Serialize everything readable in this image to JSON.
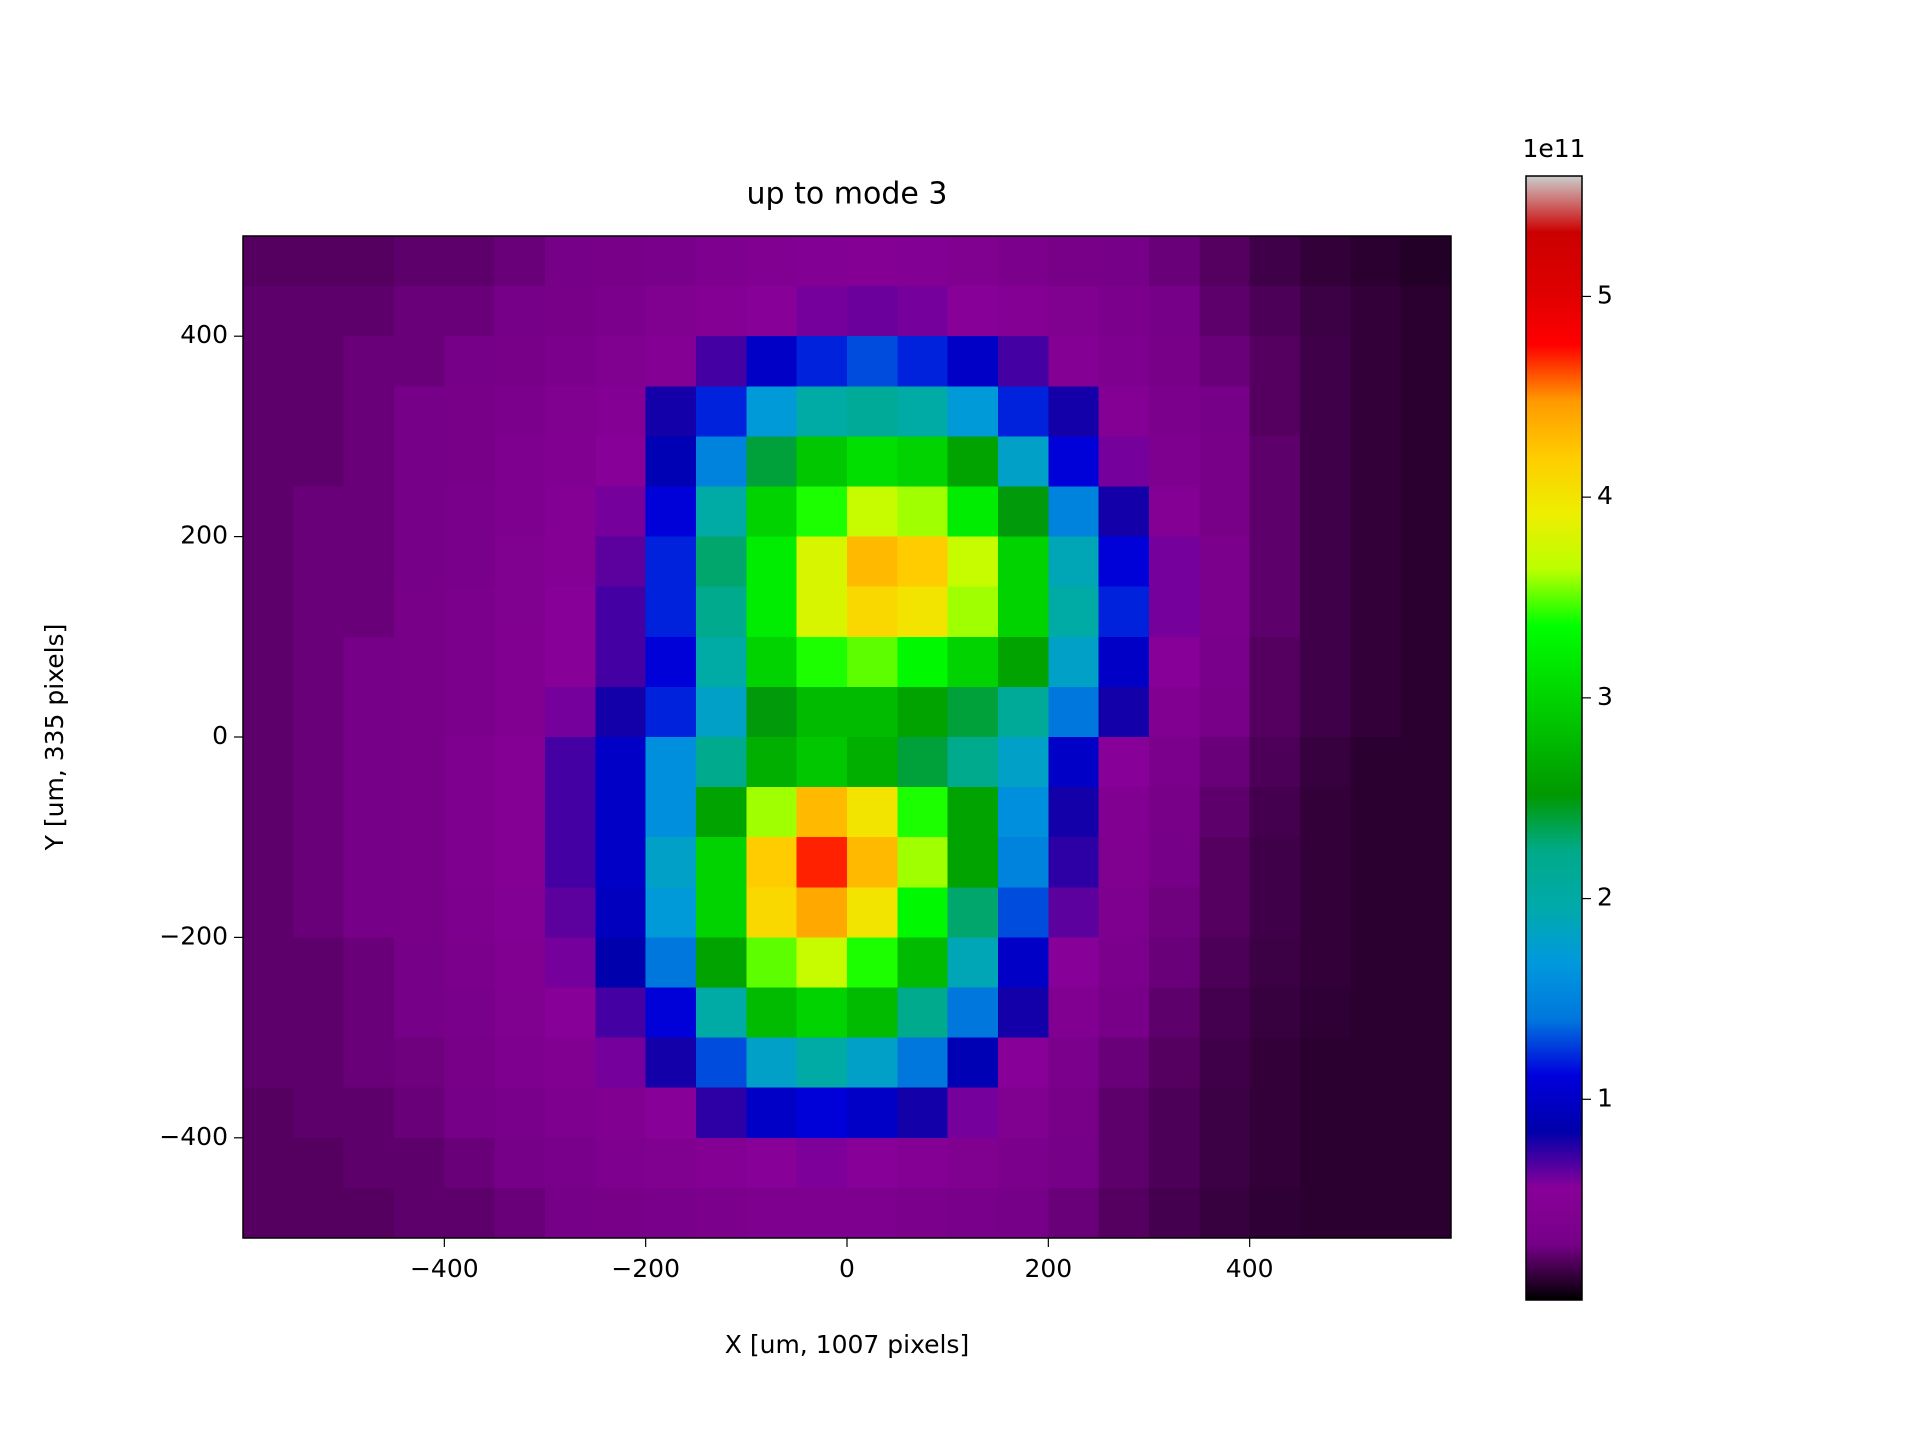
{
  "chart_data": {
    "type": "heatmap",
    "title": "up to mode 3",
    "xlabel": "X [um, 1007 pixels]",
    "ylabel": "Y [um, 335 pixels]",
    "xlim": [
      -600,
      600
    ],
    "ylim": [
      -500,
      500
    ],
    "xticks": [
      {
        "value": -400,
        "label": "−400"
      },
      {
        "value": -200,
        "label": "−200"
      },
      0,
      200,
      400
    ],
    "yticks": [
      {
        "value": -400,
        "label": "−400"
      },
      {
        "value": -200,
        "label": "−200"
      },
      0,
      200,
      400
    ],
    "colormap": "nipy_spectral",
    "clim": [
      0,
      5.6
    ],
    "cticks": [
      1,
      2,
      3,
      4,
      5
    ],
    "colorbar_offset": "1e11",
    "x": [
      -575,
      -525,
      -475,
      -425,
      -375,
      -325,
      -275,
      -225,
      -175,
      -125,
      -75,
      -25,
      25,
      75,
      125,
      175,
      225,
      275,
      325,
      375,
      425,
      475,
      525,
      575
    ],
    "y": [
      475,
      425,
      375,
      325,
      275,
      225,
      175,
      125,
      75,
      25,
      -25,
      -75,
      -125,
      -175,
      -225,
      -275,
      -325,
      -375,
      -425,
      -475
    ],
    "z": [
      [
        0.2,
        0.2,
        0.2,
        0.22,
        0.22,
        0.25,
        0.28,
        0.3,
        0.32,
        0.38,
        0.45,
        0.48,
        0.5,
        0.48,
        0.42,
        0.35,
        0.3,
        0.28,
        0.25,
        0.2,
        0.15,
        0.12,
        0.1,
        0.08
      ],
      [
        0.22,
        0.22,
        0.22,
        0.25,
        0.25,
        0.28,
        0.3,
        0.35,
        0.42,
        0.5,
        0.55,
        0.6,
        0.62,
        0.6,
        0.55,
        0.5,
        0.42,
        0.35,
        0.28,
        0.22,
        0.18,
        0.14,
        0.12,
        0.1
      ],
      [
        0.22,
        0.22,
        0.25,
        0.25,
        0.28,
        0.3,
        0.35,
        0.42,
        0.5,
        0.7,
        1.0,
        1.2,
        1.3,
        1.2,
        1.0,
        0.7,
        0.5,
        0.4,
        0.3,
        0.25,
        0.2,
        0.15,
        0.12,
        0.1
      ],
      [
        0.22,
        0.22,
        0.25,
        0.28,
        0.3,
        0.35,
        0.42,
        0.5,
        0.8,
        1.2,
        1.7,
        2.0,
        2.1,
        2.0,
        1.7,
        1.2,
        0.8,
        0.5,
        0.35,
        0.28,
        0.2,
        0.15,
        0.12,
        0.1
      ],
      [
        0.22,
        0.22,
        0.25,
        0.28,
        0.3,
        0.38,
        0.45,
        0.55,
        0.9,
        1.5,
        2.4,
        2.9,
        3.1,
        3.0,
        2.6,
        1.8,
        1.1,
        0.6,
        0.4,
        0.3,
        0.22,
        0.15,
        0.12,
        0.1
      ],
      [
        0.22,
        0.25,
        0.25,
        0.28,
        0.32,
        0.4,
        0.5,
        0.6,
        1.1,
        2.0,
        3.0,
        3.4,
        3.7,
        3.6,
        3.2,
        2.5,
        1.5,
        0.8,
        0.5,
        0.3,
        0.22,
        0.15,
        0.12,
        0.1
      ],
      [
        0.22,
        0.25,
        0.25,
        0.28,
        0.32,
        0.42,
        0.5,
        0.65,
        1.2,
        2.3,
        3.2,
        3.8,
        4.3,
        4.2,
        3.7,
        3.0,
        1.9,
        1.1,
        0.6,
        0.35,
        0.22,
        0.15,
        0.12,
        0.1
      ],
      [
        0.22,
        0.25,
        0.25,
        0.3,
        0.35,
        0.42,
        0.55,
        0.7,
        1.2,
        2.2,
        3.2,
        3.8,
        4.1,
        4.0,
        3.6,
        3.0,
        2.0,
        1.2,
        0.6,
        0.35,
        0.22,
        0.15,
        0.12,
        0.1
      ],
      [
        0.22,
        0.25,
        0.28,
        0.3,
        0.35,
        0.45,
        0.55,
        0.7,
        1.1,
        2.0,
        3.0,
        3.4,
        3.5,
        3.3,
        3.0,
        2.6,
        1.8,
        1.0,
        0.55,
        0.32,
        0.2,
        0.15,
        0.12,
        0.1
      ],
      [
        0.22,
        0.25,
        0.28,
        0.3,
        0.35,
        0.45,
        0.6,
        0.8,
        1.2,
        1.8,
        2.5,
        2.8,
        2.8,
        2.6,
        2.4,
        2.1,
        1.4,
        0.8,
        0.45,
        0.3,
        0.2,
        0.15,
        0.12,
        0.1
      ],
      [
        0.22,
        0.25,
        0.28,
        0.3,
        0.38,
        0.5,
        0.7,
        1.0,
        1.6,
        2.2,
        2.7,
        2.9,
        2.7,
        2.4,
        2.2,
        1.8,
        1.0,
        0.55,
        0.35,
        0.25,
        0.18,
        0.13,
        0.1,
        0.1
      ],
      [
        0.22,
        0.25,
        0.28,
        0.3,
        0.38,
        0.5,
        0.7,
        1.0,
        1.6,
        2.6,
        3.6,
        4.3,
        4.0,
        3.4,
        2.6,
        1.6,
        0.8,
        0.45,
        0.3,
        0.22,
        0.16,
        0.12,
        0.1,
        0.1
      ],
      [
        0.22,
        0.25,
        0.28,
        0.3,
        0.38,
        0.5,
        0.7,
        1.0,
        1.8,
        3.0,
        4.2,
        4.7,
        4.3,
        3.6,
        2.6,
        1.5,
        0.75,
        0.42,
        0.28,
        0.2,
        0.15,
        0.12,
        0.1,
        0.1
      ],
      [
        0.22,
        0.25,
        0.28,
        0.3,
        0.36,
        0.48,
        0.65,
        0.95,
        1.7,
        3.0,
        4.1,
        4.4,
        4.0,
        3.3,
        2.3,
        1.3,
        0.65,
        0.38,
        0.26,
        0.2,
        0.15,
        0.12,
        0.1,
        0.1
      ],
      [
        0.22,
        0.22,
        0.25,
        0.28,
        0.34,
        0.45,
        0.6,
        0.85,
        1.4,
        2.6,
        3.5,
        3.7,
        3.4,
        2.8,
        1.9,
        1.0,
        0.55,
        0.35,
        0.25,
        0.18,
        0.14,
        0.12,
        0.1,
        0.1
      ],
      [
        0.22,
        0.22,
        0.25,
        0.28,
        0.32,
        0.42,
        0.55,
        0.7,
        1.1,
        2.0,
        2.8,
        3.0,
        2.8,
        2.2,
        1.4,
        0.8,
        0.45,
        0.3,
        0.22,
        0.16,
        0.13,
        0.11,
        0.1,
        0.1
      ],
      [
        0.22,
        0.22,
        0.25,
        0.26,
        0.3,
        0.38,
        0.45,
        0.6,
        0.8,
        1.3,
        1.8,
        2.0,
        1.8,
        1.4,
        0.9,
        0.55,
        0.35,
        0.25,
        0.2,
        0.15,
        0.12,
        0.1,
        0.1,
        0.1
      ],
      [
        0.2,
        0.22,
        0.22,
        0.25,
        0.28,
        0.32,
        0.4,
        0.45,
        0.55,
        0.75,
        1.0,
        1.1,
        1.0,
        0.8,
        0.6,
        0.42,
        0.3,
        0.22,
        0.18,
        0.14,
        0.12,
        0.1,
        0.1,
        0.1
      ],
      [
        0.2,
        0.2,
        0.22,
        0.22,
        0.25,
        0.28,
        0.32,
        0.38,
        0.42,
        0.5,
        0.55,
        0.58,
        0.55,
        0.5,
        0.42,
        0.35,
        0.28,
        0.22,
        0.18,
        0.14,
        0.12,
        0.1,
        0.1,
        0.1
      ],
      [
        0.2,
        0.2,
        0.2,
        0.22,
        0.22,
        0.25,
        0.28,
        0.3,
        0.32,
        0.35,
        0.38,
        0.4,
        0.38,
        0.35,
        0.32,
        0.28,
        0.25,
        0.2,
        0.16,
        0.13,
        0.11,
        0.1,
        0.1,
        0.1
      ]
    ]
  }
}
